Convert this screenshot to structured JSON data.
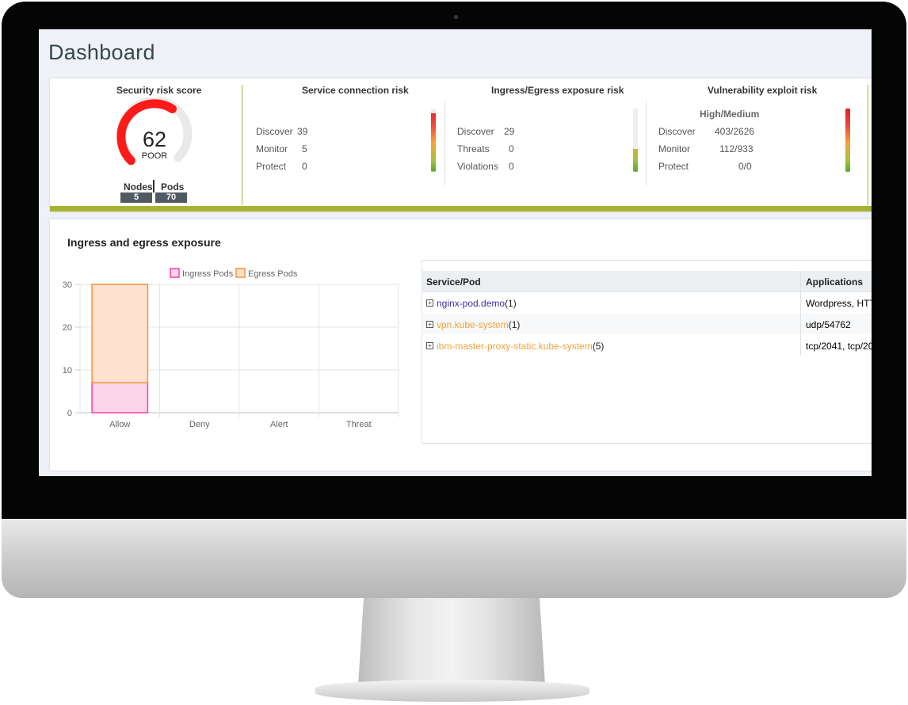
{
  "page": {
    "title": "Dashboard"
  },
  "security_score": {
    "title": "Security risk score",
    "score": "62",
    "rating": "POOR",
    "nodes_label": "Nodes",
    "pods_label": "Pods",
    "nodes": "5",
    "pods": "70",
    "gauge_fraction": 0.62,
    "color": "#ff1a1a"
  },
  "service_connection": {
    "title": "Service connection risk",
    "rows": [
      {
        "label": "Discover",
        "value": "39"
      },
      {
        "label": "Monitor",
        "value": "5"
      },
      {
        "label": "Protect",
        "value": "0"
      }
    ],
    "meter_level": 0.92
  },
  "ingress_egress": {
    "title": "Ingress/Egress exposure risk",
    "rows": [
      {
        "label": "Discover",
        "value": "29"
      },
      {
        "label": "Threats",
        "value": "0"
      },
      {
        "label": "Violations",
        "value": "0"
      }
    ],
    "meter_level": 0.36
  },
  "vulnerability": {
    "title": "Vulnerability exploit risk",
    "header": "High/Medium",
    "rows": [
      {
        "label": "Discover",
        "value": "403/2626"
      },
      {
        "label": "Monitor",
        "value": "112/933"
      },
      {
        "label": "Protect",
        "value": "0/0"
      }
    ],
    "meter_level": 1.0
  },
  "exposure": {
    "title": "Ingress and egress exposure",
    "table": {
      "headers": [
        "Service/Pod",
        "Applications"
      ],
      "rows": [
        {
          "name": "nginx-pod.demo",
          "count": "(1)",
          "apps": "Wordpress, HTT",
          "link_color": "#3b2fa6"
        },
        {
          "name": "vpn.kube-system",
          "count": "(1)",
          "apps": "udp/54762",
          "link_color": "#f0a33a"
        },
        {
          "name": "ibm-master-proxy-static.kube-system",
          "count": "(5)",
          "apps": "tcp/2041, tcp/20",
          "link_color": "#f0a33a"
        }
      ]
    }
  },
  "chart_data": {
    "type": "bar",
    "stacked": true,
    "categories": [
      "Allow",
      "Deny",
      "Alert",
      "Threat"
    ],
    "series": [
      {
        "name": "Ingress Pods",
        "values": [
          7,
          0,
          0,
          0
        ],
        "color": "#ff3fa4",
        "fill": "#fdd5ea"
      },
      {
        "name": "Egress Pods",
        "values": [
          23,
          0,
          0,
          0
        ],
        "color": "#f7923a",
        "fill": "#fde2cf"
      }
    ],
    "ylim": [
      0,
      30
    ],
    "yticks": [
      0,
      10,
      20,
      30
    ],
    "legend": "top",
    "grid": true
  },
  "colors": {
    "accent_bar": "#a8b231",
    "background": "#eef2f6"
  }
}
